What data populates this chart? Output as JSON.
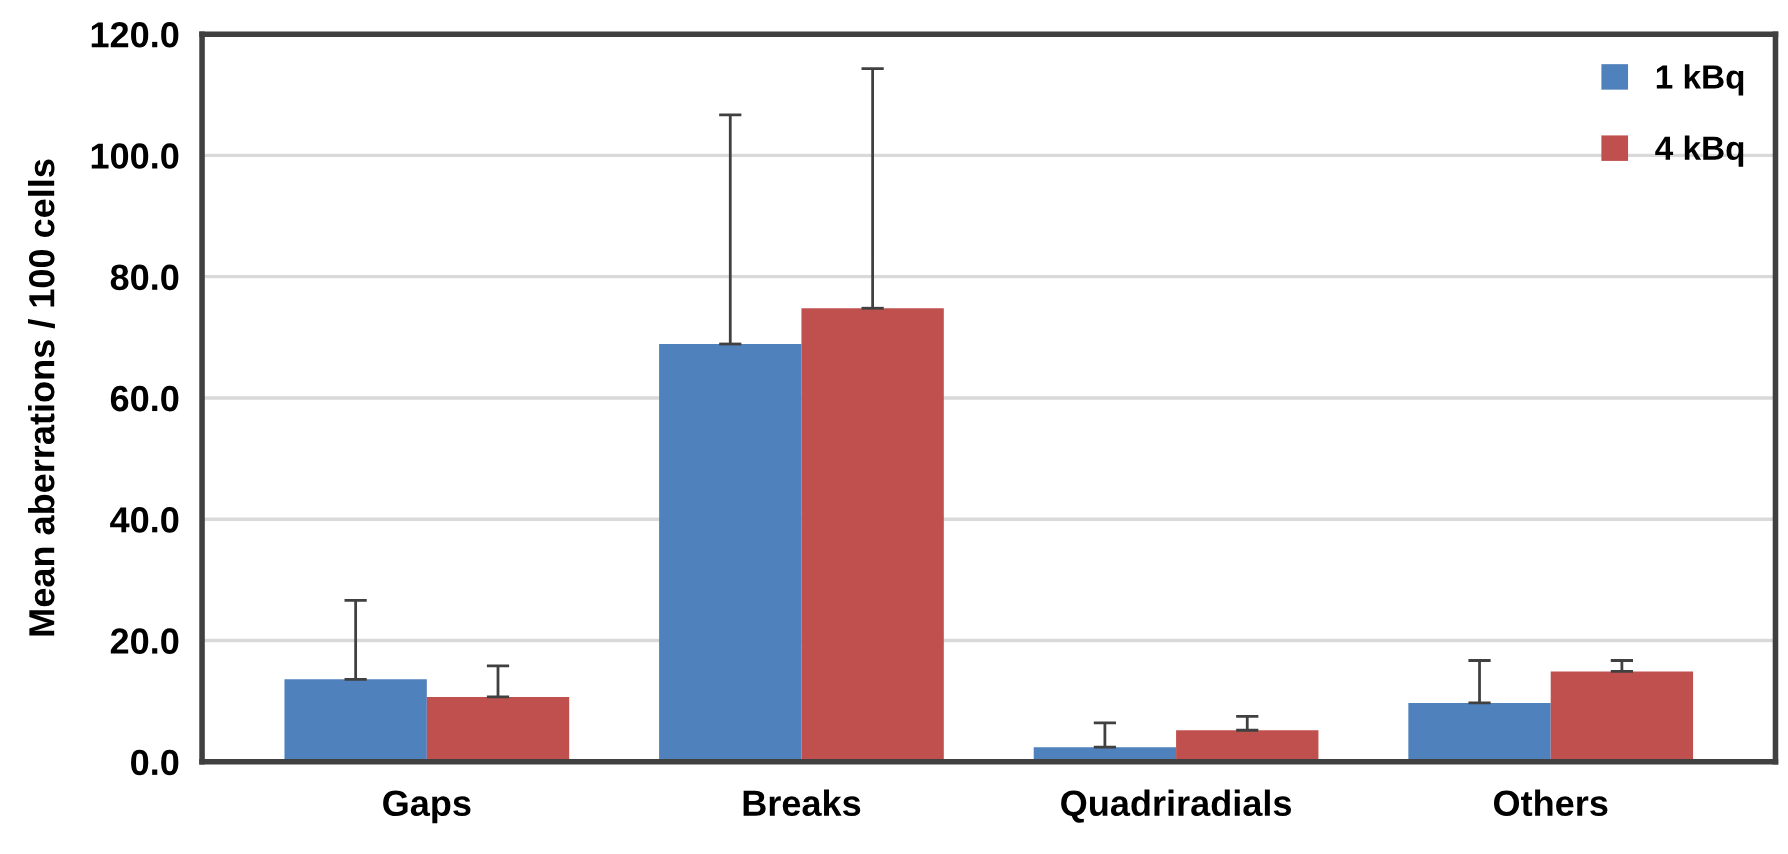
{
  "chart_data": {
    "type": "bar",
    "ylabel": "Mean aberrations / 100 cells",
    "categories": [
      "Gaps",
      "Breaks",
      "Quadriradials",
      "Others"
    ],
    "series": [
      {
        "name": "1 kBq",
        "color": "#4f81bd",
        "values": [
          13.6,
          68.9,
          2.4,
          9.7
        ],
        "errors": [
          [
            13.6,
            26.6
          ],
          [
            68.9,
            106.7
          ],
          [
            2.4,
            6.4
          ],
          [
            9.7,
            16.7
          ]
        ]
      },
      {
        "name": "4 kBq",
        "color": "#c0504d",
        "values": [
          10.7,
          74.8,
          5.2,
          14.9
        ],
        "errors": [
          [
            10.7,
            15.8
          ],
          [
            74.8,
            114.3
          ],
          [
            5.2,
            7.5
          ],
          [
            14.9,
            16.7
          ]
        ]
      }
    ],
    "ylim": [
      0,
      120
    ],
    "yticks": [
      {
        "value": 0,
        "label": "0.0"
      },
      {
        "value": 20,
        "label": "20.0"
      },
      {
        "value": 40,
        "label": "40.0"
      },
      {
        "value": 60,
        "label": "60.0"
      },
      {
        "value": 80,
        "label": "80.0"
      },
      {
        "value": 100,
        "label": "100.0"
      },
      {
        "value": 120,
        "label": "120.0"
      }
    ],
    "grid": "y",
    "legend": "top right"
  }
}
